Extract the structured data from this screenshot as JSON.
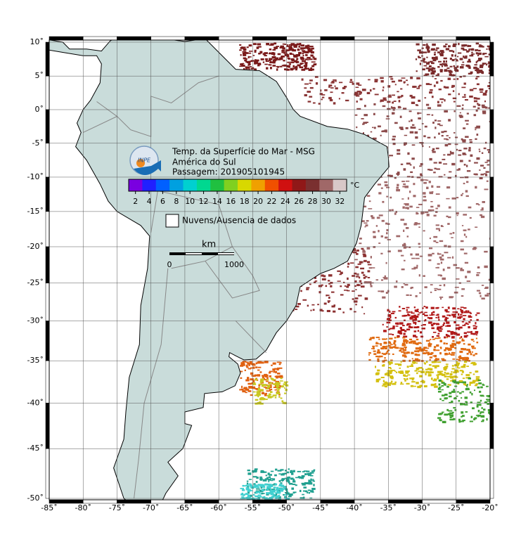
{
  "map": {
    "lon_ticks": [
      {
        "value": -85,
        "label": "-85˚"
      },
      {
        "value": -80,
        "label": "-80˚"
      },
      {
        "value": -75,
        "label": "-75˚"
      },
      {
        "value": -70,
        "label": "-70˚"
      },
      {
        "value": -65,
        "label": "-65˚"
      },
      {
        "value": -60,
        "label": "-60˚"
      },
      {
        "value": -55,
        "label": "-55˚"
      },
      {
        "value": -50,
        "label": "-50˚"
      },
      {
        "value": -45,
        "label": "-45˚"
      },
      {
        "value": -40,
        "label": "-40˚"
      },
      {
        "value": -35,
        "label": "-35˚"
      },
      {
        "value": -30,
        "label": "-30˚"
      },
      {
        "value": -25,
        "label": "-25˚"
      },
      {
        "value": -20,
        "label": "-20˚"
      }
    ],
    "lat_ticks": [
      {
        "value": 10,
        "label": "10˚"
      },
      {
        "value": 5,
        "label": "5˚"
      },
      {
        "value": 0,
        "label": "0˚"
      },
      {
        "value": -5,
        "label": "-5˚"
      },
      {
        "value": -10,
        "label": "-10˚"
      },
      {
        "value": -15,
        "label": "-15˚"
      },
      {
        "value": -20,
        "label": "-20˚"
      },
      {
        "value": -25,
        "label": "-25˚"
      },
      {
        "value": -30,
        "label": "-30˚"
      },
      {
        "value": -35,
        "label": "-35˚"
      },
      {
        "value": -40,
        "label": "-40˚"
      },
      {
        "value": -45,
        "label": "-45˚"
      },
      {
        "value": -50,
        "label": "-50˚"
      }
    ]
  },
  "logo": "INPE",
  "header": {
    "lines": [
      "Temp. da Superfície do Mar - MSG",
      "América do Sul",
      "Passagem: 201905101945"
    ]
  },
  "colorbar": {
    "unit": "°C",
    "range": [
      1,
      33
    ],
    "ticks": [
      2,
      4,
      6,
      8,
      10,
      12,
      14,
      16,
      18,
      20,
      22,
      24,
      26,
      28,
      30,
      32
    ],
    "colors": [
      "#7a00e0",
      "#2020ff",
      "#0060ff",
      "#00a0e0",
      "#00d0d0",
      "#00d890",
      "#20c040",
      "#80d020",
      "#d8d800",
      "#f0a000",
      "#f05000",
      "#d01010",
      "#901818",
      "#7a3030",
      "#a06868",
      "#d8c8c8"
    ]
  },
  "legend": "Nuvens/Ausencia de dados",
  "scale": {
    "unit": "km",
    "labels": [
      "0",
      "1000"
    ]
  }
}
